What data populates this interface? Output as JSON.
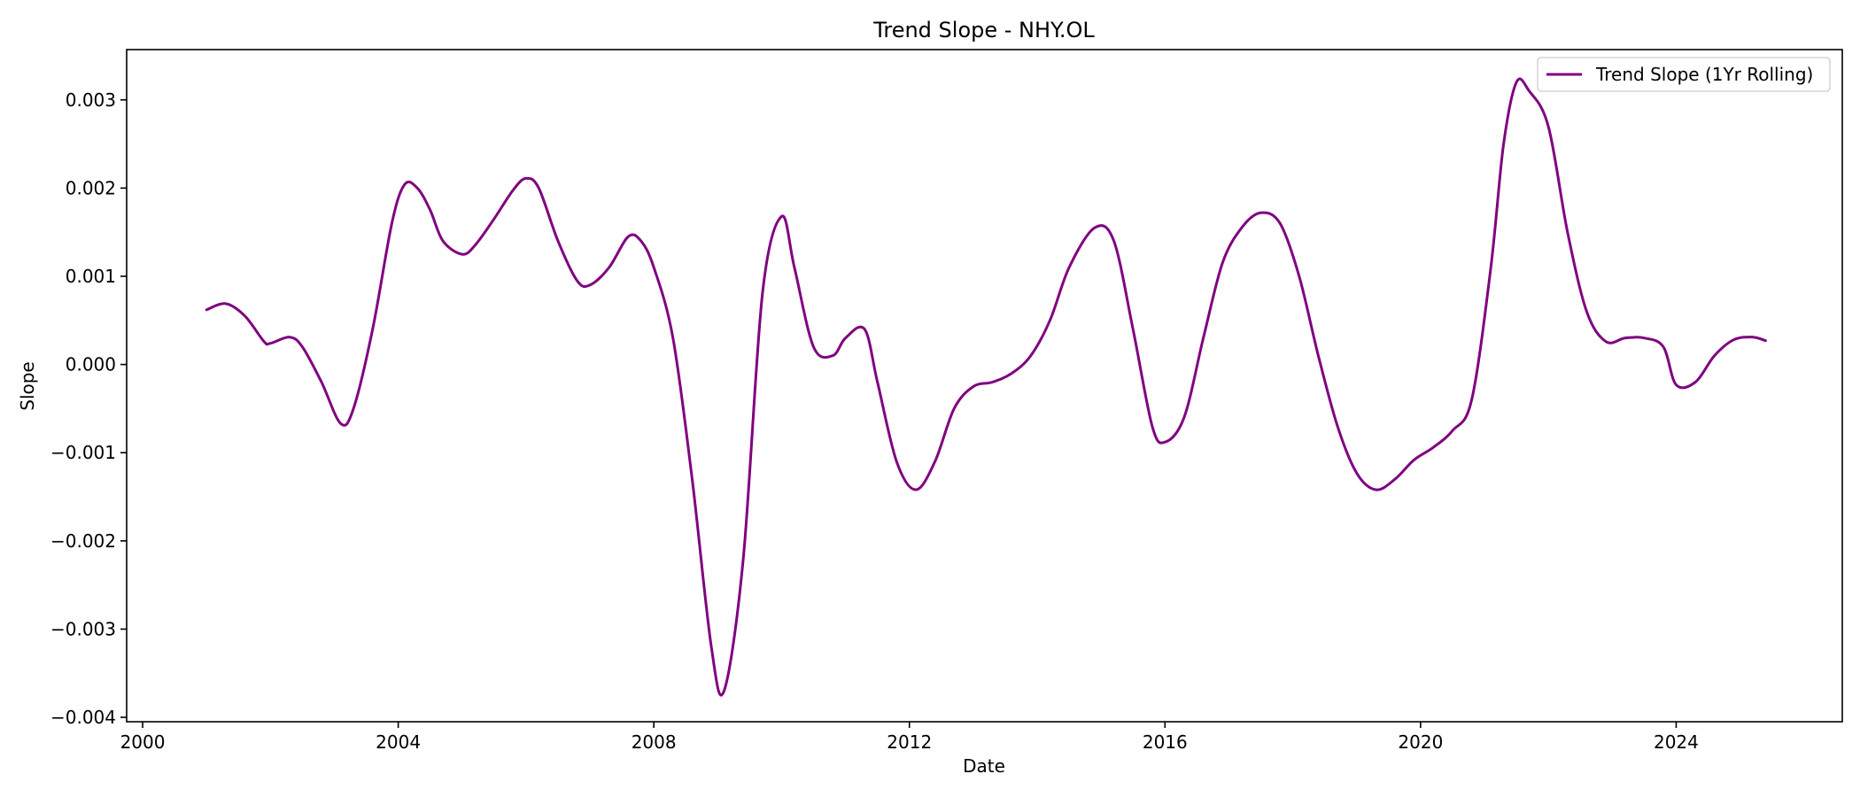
{
  "chart_data": {
    "type": "line",
    "title": "Trend Slope - NHY.OL",
    "xlabel": "Date",
    "ylabel": "Slope",
    "xlim": [
      1999.75,
      2026.6
    ],
    "ylim": [
      -0.00405,
      0.00357
    ],
    "x_ticks": [
      2000,
      2004,
      2008,
      2012,
      2016,
      2020,
      2024
    ],
    "x_tick_labels": [
      "2000",
      "2004",
      "2008",
      "2012",
      "2016",
      "2020",
      "2024"
    ],
    "y_ticks": [
      -0.004,
      -0.003,
      -0.002,
      -0.001,
      0.0,
      0.001,
      0.002,
      0.003
    ],
    "y_tick_labels": [
      "−0.004",
      "−0.003",
      "−0.002",
      "−0.001",
      "0.000",
      "0.001",
      "0.002",
      "0.003"
    ],
    "grid": false,
    "legend_position": "top-right",
    "series": [
      {
        "name": "Trend Slope (1Yr Rolling)",
        "color": "#800080",
        "x": [
          2001.0,
          2001.3,
          2001.6,
          2001.9,
          2002.0,
          2002.3,
          2002.5,
          2002.8,
          2003.1,
          2003.3,
          2003.6,
          2003.9,
          2004.1,
          2004.3,
          2004.5,
          2004.7,
          2005.0,
          2005.2,
          2005.5,
          2005.8,
          2006.0,
          2006.2,
          2006.5,
          2006.8,
          2007.0,
          2007.3,
          2007.6,
          2007.8,
          2008.0,
          2008.3,
          2008.6,
          2008.9,
          2009.1,
          2009.4,
          2009.7,
          2010.0,
          2010.2,
          2010.5,
          2010.8,
          2011.0,
          2011.3,
          2011.5,
          2011.8,
          2012.1,
          2012.4,
          2012.7,
          2013.0,
          2013.3,
          2013.6,
          2013.9,
          2014.2,
          2014.5,
          2014.9,
          2015.2,
          2015.5,
          2015.8,
          2016.0,
          2016.3,
          2016.6,
          2016.9,
          2017.2,
          2017.5,
          2017.8,
          2018.1,
          2018.4,
          2018.7,
          2019.0,
          2019.3,
          2019.6,
          2019.9,
          2020.2,
          2020.5,
          2020.8,
          2021.1,
          2021.3,
          2021.5,
          2021.7,
          2022.0,
          2022.3,
          2022.6,
          2022.9,
          2023.2,
          2023.5,
          2023.8,
          2024.0,
          2024.3,
          2024.6,
          2024.9,
          2025.2,
          2025.4
        ],
        "values": [
          0.00062,
          0.00069,
          0.00055,
          0.00026,
          0.00024,
          0.00031,
          0.0002,
          -0.0002,
          -0.00067,
          -0.0005,
          0.0004,
          0.0016,
          0.00204,
          0.002,
          0.00175,
          0.0014,
          0.00125,
          0.00135,
          0.00165,
          0.00198,
          0.00211,
          0.002,
          0.0014,
          0.00095,
          0.0009,
          0.0011,
          0.00145,
          0.0014,
          0.0011,
          0.0003,
          -0.0013,
          -0.0032,
          -0.0037,
          -0.0022,
          0.0008,
          0.00168,
          0.0011,
          0.0002,
          0.0001,
          0.0003,
          0.0004,
          -0.0002,
          -0.0011,
          -0.00142,
          -0.0011,
          -0.0005,
          -0.00025,
          -0.0002,
          -0.0001,
          0.0001,
          0.0005,
          0.0011,
          0.00155,
          0.0014,
          0.0004,
          -0.0007,
          -0.00088,
          -0.0006,
          0.0003,
          0.00115,
          0.00155,
          0.00172,
          0.0016,
          0.001,
          0.0001,
          -0.0007,
          -0.00123,
          -0.00142,
          -0.0013,
          -0.00108,
          -0.00094,
          -0.00075,
          -0.0004,
          0.0011,
          0.0025,
          0.0032,
          0.0031,
          0.0027,
          0.0015,
          0.0006,
          0.00026,
          0.0003,
          0.0003,
          0.0002,
          -0.00023,
          -0.0002,
          0.0001,
          0.00028,
          0.00031,
          0.00027
        ]
      }
    ]
  }
}
